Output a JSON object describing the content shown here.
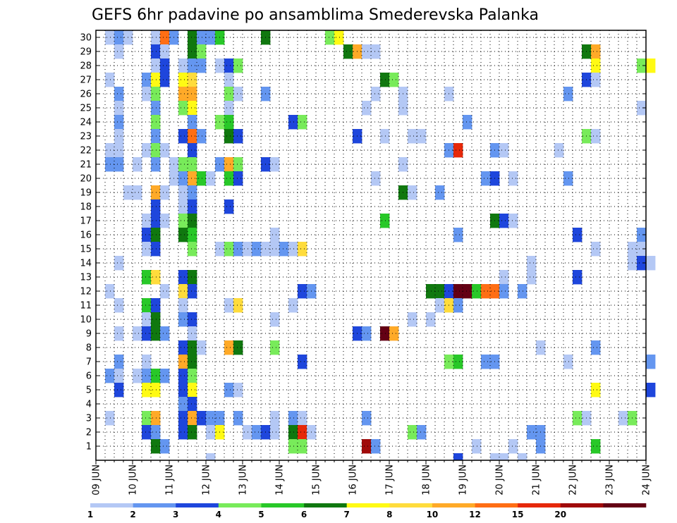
{
  "chart_data": {
    "type": "heatmap",
    "title": "GEFS 6hr padavine po ansamblima Smederevska Palanka",
    "xlabel": "",
    "ylabel": "",
    "x_ticks": [
      "09 JUN",
      "10 JUN",
      "11 JUN",
      "12 JUN",
      "13 JUN",
      "14 JUN",
      "15 JUN",
      "16 JUN",
      "17 JUN",
      "18 JUN",
      "19 JUN",
      "20 JUN",
      "21 JUN",
      "22 JUN",
      "23 JUN",
      "24 JUN"
    ],
    "y_ticks": [
      "1",
      "2",
      "3",
      "4",
      "5",
      "6",
      "7",
      "8",
      "9",
      "10",
      "11",
      "12",
      "13",
      "14",
      "15",
      "16",
      "17",
      "18",
      "19",
      "20",
      "21",
      "22",
      "23",
      "24",
      "25",
      "26",
      "27",
      "28",
      "29",
      "30"
    ],
    "xlim": [
      "09 JUN",
      "24 JUN"
    ],
    "ylim": [
      0,
      30
    ],
    "x_step_hours": 6,
    "grid": true,
    "legend_placement": "bottom",
    "legend": {
      "labels": [
        "1",
        "2",
        "3",
        "4",
        "5",
        "6",
        "7",
        "8",
        "10",
        "12",
        "15",
        "20"
      ],
      "colors": [
        "#b4c8f5",
        "#6496f0",
        "#1e46dc",
        "#78eb5a",
        "#28c828",
        "#10780f",
        "#fffa14",
        "#ffdc3c",
        "#ffaa28",
        "#ff6e14",
        "#e6280a",
        "#a00a0a",
        "#640014"
      ]
    },
    "cells": [
      [
        30,
        1,
        1
      ],
      [
        30,
        2,
        2
      ],
      [
        30,
        3,
        1
      ],
      [
        30,
        6,
        1
      ],
      [
        30,
        7,
        10
      ],
      [
        30,
        8,
        2
      ],
      [
        30,
        10,
        6
      ],
      [
        30,
        11,
        2
      ],
      [
        30,
        12,
        2
      ],
      [
        30,
        13,
        5
      ],
      [
        30,
        18,
        6
      ],
      [
        30,
        25,
        4
      ],
      [
        30,
        26,
        7
      ],
      [
        29,
        2,
        1
      ],
      [
        29,
        6,
        3
      ],
      [
        29,
        7,
        1
      ],
      [
        29,
        10,
        6
      ],
      [
        29,
        11,
        4
      ],
      [
        29,
        27,
        6
      ],
      [
        29,
        28,
        9
      ],
      [
        29,
        29,
        1
      ],
      [
        29,
        30,
        1
      ],
      [
        29,
        53,
        6
      ],
      [
        29,
        54,
        9
      ],
      [
        28,
        6,
        1
      ],
      [
        28,
        7,
        3
      ],
      [
        28,
        9,
        1
      ],
      [
        28,
        10,
        2
      ],
      [
        28,
        11,
        2
      ],
      [
        28,
        13,
        1
      ],
      [
        28,
        14,
        3
      ],
      [
        28,
        15,
        4
      ],
      [
        28,
        54,
        7
      ],
      [
        28,
        59,
        4
      ],
      [
        28,
        60,
        7
      ],
      [
        27,
        1,
        1
      ],
      [
        27,
        5,
        2
      ],
      [
        27,
        6,
        7
      ],
      [
        27,
        7,
        3
      ],
      [
        27,
        9,
        7
      ],
      [
        27,
        10,
        8
      ],
      [
        27,
        14,
        1
      ],
      [
        27,
        31,
        6
      ],
      [
        27,
        32,
        4
      ],
      [
        27,
        53,
        3
      ],
      [
        27,
        54,
        1
      ],
      [
        26,
        2,
        2
      ],
      [
        26,
        5,
        1
      ],
      [
        26,
        6,
        4
      ],
      [
        26,
        9,
        9
      ],
      [
        26,
        10,
        9
      ],
      [
        26,
        14,
        4
      ],
      [
        26,
        15,
        1
      ],
      [
        26,
        18,
        2
      ],
      [
        26,
        30,
        1
      ],
      [
        26,
        33,
        1
      ],
      [
        26,
        38,
        1
      ],
      [
        26,
        51,
        2
      ],
      [
        25,
        2,
        1
      ],
      [
        25,
        6,
        2
      ],
      [
        25,
        9,
        4
      ],
      [
        25,
        10,
        7
      ],
      [
        25,
        14,
        1
      ],
      [
        25,
        29,
        1
      ],
      [
        25,
        33,
        1
      ],
      [
        25,
        59,
        1
      ],
      [
        24,
        2,
        2
      ],
      [
        24,
        6,
        4
      ],
      [
        24,
        10,
        2
      ],
      [
        24,
        13,
        4
      ],
      [
        24,
        14,
        5
      ],
      [
        24,
        21,
        3
      ],
      [
        24,
        22,
        4
      ],
      [
        24,
        40,
        2
      ],
      [
        23,
        2,
        1
      ],
      [
        23,
        6,
        2
      ],
      [
        23,
        9,
        3
      ],
      [
        23,
        10,
        10
      ],
      [
        23,
        11,
        2
      ],
      [
        23,
        14,
        6
      ],
      [
        23,
        15,
        3
      ],
      [
        23,
        28,
        3
      ],
      [
        23,
        31,
        1
      ],
      [
        23,
        34,
        1
      ],
      [
        23,
        35,
        1
      ],
      [
        23,
        53,
        4
      ],
      [
        23,
        54,
        1
      ],
      [
        22,
        1,
        1
      ],
      [
        22,
        2,
        1
      ],
      [
        22,
        5,
        1
      ],
      [
        22,
        6,
        4
      ],
      [
        22,
        7,
        1
      ],
      [
        22,
        10,
        3
      ],
      [
        22,
        38,
        2
      ],
      [
        22,
        39,
        11
      ],
      [
        22,
        43,
        2
      ],
      [
        22,
        44,
        1
      ],
      [
        22,
        50,
        1
      ],
      [
        21,
        1,
        2
      ],
      [
        21,
        2,
        2
      ],
      [
        21,
        4,
        1
      ],
      [
        21,
        6,
        2
      ],
      [
        21,
        8,
        1
      ],
      [
        21,
        9,
        4
      ],
      [
        21,
        10,
        4
      ],
      [
        21,
        13,
        2
      ],
      [
        21,
        14,
        9
      ],
      [
        21,
        15,
        4
      ],
      [
        21,
        18,
        3
      ],
      [
        21,
        19,
        1
      ],
      [
        21,
        33,
        1
      ],
      [
        20,
        8,
        1
      ],
      [
        20,
        9,
        2
      ],
      [
        20,
        10,
        9
      ],
      [
        20,
        11,
        5
      ],
      [
        20,
        12,
        1
      ],
      [
        20,
        14,
        5
      ],
      [
        20,
        15,
        3
      ],
      [
        20,
        30,
        1
      ],
      [
        20,
        42,
        2
      ],
      [
        20,
        43,
        3
      ],
      [
        20,
        45,
        1
      ],
      [
        20,
        51,
        2
      ],
      [
        19,
        3,
        1
      ],
      [
        19,
        4,
        1
      ],
      [
        19,
        6,
        9
      ],
      [
        19,
        7,
        1
      ],
      [
        19,
        9,
        1
      ],
      [
        19,
        10,
        2
      ],
      [
        19,
        33,
        6
      ],
      [
        19,
        34,
        1
      ],
      [
        19,
        37,
        2
      ],
      [
        18,
        6,
        3
      ],
      [
        18,
        9,
        1
      ],
      [
        18,
        10,
        3
      ],
      [
        18,
        14,
        3
      ],
      [
        17,
        5,
        1
      ],
      [
        17,
        6,
        3
      ],
      [
        17,
        7,
        1
      ],
      [
        17,
        9,
        4
      ],
      [
        17,
        10,
        6
      ],
      [
        17,
        31,
        5
      ],
      [
        17,
        43,
        6
      ],
      [
        17,
        44,
        3
      ],
      [
        17,
        45,
        1
      ],
      [
        16,
        5,
        3
      ],
      [
        16,
        6,
        6
      ],
      [
        16,
        9,
        6
      ],
      [
        16,
        10,
        5
      ],
      [
        16,
        19,
        1
      ],
      [
        16,
        39,
        2
      ],
      [
        16,
        52,
        3
      ],
      [
        16,
        59,
        2
      ],
      [
        15,
        5,
        1
      ],
      [
        15,
        6,
        3
      ],
      [
        15,
        10,
        4
      ],
      [
        15,
        13,
        1
      ],
      [
        15,
        14,
        4
      ],
      [
        15,
        15,
        2
      ],
      [
        15,
        16,
        1
      ],
      [
        15,
        17,
        2
      ],
      [
        15,
        18,
        1
      ],
      [
        15,
        19,
        1
      ],
      [
        15,
        20,
        2
      ],
      [
        15,
        21,
        1
      ],
      [
        15,
        22,
        8
      ],
      [
        15,
        54,
        1
      ],
      [
        15,
        58,
        1
      ],
      [
        15,
        59,
        1
      ],
      [
        14,
        2,
        1
      ],
      [
        14,
        47,
        1
      ],
      [
        14,
        58,
        1
      ],
      [
        14,
        59,
        3
      ],
      [
        14,
        60,
        1
      ],
      [
        13,
        5,
        5
      ],
      [
        13,
        6,
        8
      ],
      [
        13,
        9,
        3
      ],
      [
        13,
        10,
        6
      ],
      [
        13,
        44,
        1
      ],
      [
        13,
        47,
        1
      ],
      [
        13,
        52,
        3
      ],
      [
        12,
        1,
        1
      ],
      [
        12,
        7,
        1
      ],
      [
        12,
        9,
        8
      ],
      [
        12,
        10,
        3
      ],
      [
        12,
        22,
        3
      ],
      [
        12,
        23,
        2
      ],
      [
        12,
        36,
        6
      ],
      [
        12,
        37,
        6
      ],
      [
        12,
        38,
        3
      ],
      [
        12,
        39,
        13
      ],
      [
        12,
        40,
        13
      ],
      [
        12,
        41,
        5
      ],
      [
        12,
        42,
        10
      ],
      [
        12,
        43,
        10
      ],
      [
        12,
        44,
        2
      ],
      [
        12,
        46,
        2
      ],
      [
        11,
        2,
        1
      ],
      [
        11,
        5,
        5
      ],
      [
        11,
        6,
        3
      ],
      [
        11,
        9,
        1
      ],
      [
        11,
        14,
        1
      ],
      [
        11,
        15,
        8
      ],
      [
        11,
        21,
        1
      ],
      [
        11,
        37,
        1
      ],
      [
        11,
        38,
        8
      ],
      [
        11,
        39,
        2
      ],
      [
        10,
        5,
        1
      ],
      [
        10,
        6,
        6
      ],
      [
        10,
        9,
        2
      ],
      [
        10,
        10,
        3
      ],
      [
        10,
        19,
        1
      ],
      [
        10,
        34,
        1
      ],
      [
        10,
        36,
        1
      ],
      [
        9,
        2,
        1
      ],
      [
        9,
        4,
        1
      ],
      [
        9,
        5,
        3
      ],
      [
        9,
        6,
        6
      ],
      [
        9,
        7,
        2
      ],
      [
        9,
        10,
        1
      ],
      [
        9,
        28,
        3
      ],
      [
        9,
        29,
        2
      ],
      [
        9,
        31,
        13
      ],
      [
        9,
        32,
        9
      ],
      [
        8,
        9,
        3
      ],
      [
        8,
        10,
        6
      ],
      [
        8,
        11,
        1
      ],
      [
        8,
        14,
        9
      ],
      [
        8,
        15,
        6
      ],
      [
        8,
        19,
        4
      ],
      [
        8,
        48,
        1
      ],
      [
        8,
        54,
        2
      ],
      [
        7,
        2,
        2
      ],
      [
        7,
        5,
        1
      ],
      [
        7,
        9,
        9
      ],
      [
        7,
        10,
        6
      ],
      [
        7,
        22,
        3
      ],
      [
        7,
        38,
        4
      ],
      [
        7,
        39,
        5
      ],
      [
        7,
        42,
        2
      ],
      [
        7,
        43,
        2
      ],
      [
        7,
        51,
        1
      ],
      [
        7,
        60,
        2
      ],
      [
        6,
        1,
        2
      ],
      [
        6,
        2,
        1
      ],
      [
        6,
        4,
        1
      ],
      [
        6,
        5,
        2
      ],
      [
        6,
        6,
        5
      ],
      [
        6,
        7,
        2
      ],
      [
        6,
        9,
        3
      ],
      [
        6,
        10,
        4
      ],
      [
        5,
        2,
        3
      ],
      [
        5,
        5,
        7
      ],
      [
        5,
        6,
        7
      ],
      [
        5,
        9,
        3
      ],
      [
        5,
        10,
        7
      ],
      [
        5,
        14,
        2
      ],
      [
        5,
        15,
        1
      ],
      [
        5,
        54,
        7
      ],
      [
        5,
        60,
        3
      ],
      [
        4,
        9,
        2
      ],
      [
        4,
        10,
        3
      ],
      [
        3,
        1,
        1
      ],
      [
        3,
        5,
        4
      ],
      [
        3,
        6,
        9
      ],
      [
        3,
        9,
        3
      ],
      [
        3,
        10,
        9
      ],
      [
        3,
        11,
        3
      ],
      [
        3,
        12,
        2
      ],
      [
        3,
        13,
        2
      ],
      [
        3,
        15,
        2
      ],
      [
        3,
        19,
        1
      ],
      [
        3,
        21,
        2
      ],
      [
        3,
        22,
        1
      ],
      [
        3,
        29,
        2
      ],
      [
        3,
        52,
        4
      ],
      [
        3,
        53,
        1
      ],
      [
        3,
        57,
        1
      ],
      [
        3,
        58,
        4
      ],
      [
        2,
        5,
        3
      ],
      [
        2,
        6,
        2
      ],
      [
        2,
        9,
        3
      ],
      [
        2,
        10,
        6
      ],
      [
        2,
        12,
        1
      ],
      [
        2,
        13,
        7
      ],
      [
        2,
        16,
        1
      ],
      [
        2,
        17,
        2
      ],
      [
        2,
        18,
        3
      ],
      [
        2,
        19,
        1
      ],
      [
        2,
        21,
        6
      ],
      [
        2,
        22,
        11
      ],
      [
        2,
        23,
        1
      ],
      [
        2,
        34,
        4
      ],
      [
        2,
        35,
        2
      ],
      [
        2,
        47,
        2
      ],
      [
        2,
        48,
        2
      ],
      [
        1,
        6,
        6
      ],
      [
        1,
        7,
        2
      ],
      [
        1,
        21,
        4
      ],
      [
        1,
        22,
        4
      ],
      [
        1,
        29,
        12
      ],
      [
        1,
        30,
        2
      ],
      [
        1,
        41,
        1
      ],
      [
        1,
        45,
        1
      ],
      [
        1,
        48,
        2
      ],
      [
        1,
        54,
        5
      ],
      [
        0,
        12,
        1
      ],
      [
        0,
        39,
        3
      ],
      [
        0,
        43,
        1
      ],
      [
        0,
        44,
        1
      ],
      [
        0,
        46,
        1
      ]
    ]
  }
}
